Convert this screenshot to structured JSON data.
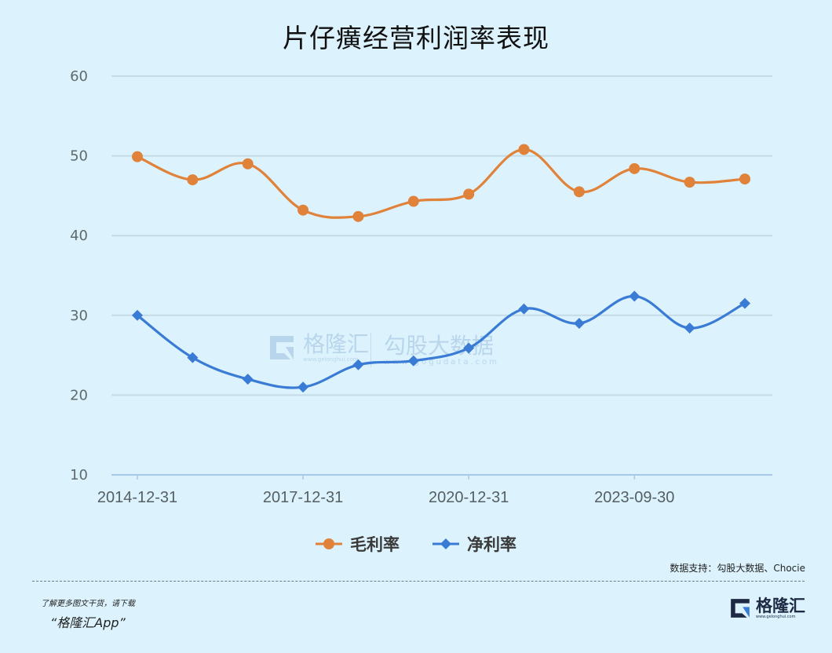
{
  "title": "片仔癀经营利润率表现",
  "legend": {
    "gross": "毛利率",
    "net": "净利率"
  },
  "source": "数据支持：勾股大数据、Chocie",
  "footer": {
    "promo_line1": "了解更多图文干货，请下载",
    "promo_line2": "“格隆汇App”",
    "logo_name": "格隆汇",
    "logo_url": "www.gelonghui.com"
  },
  "watermark": {
    "brand1": "格隆汇",
    "brand1_url": "www.gelonghui.com",
    "brand2": "勾股大数据",
    "brand2_url": "www.gogudata.com"
  },
  "colors": {
    "background": "#dcf3fd",
    "gross": "#e0823a",
    "net": "#3a7bd5",
    "grid": "#c5dbe6",
    "axis": "#a9c7e8"
  },
  "chart_data": {
    "type": "line",
    "title": "片仔癀经营利润率表现",
    "xlabel": "",
    "ylabel": "",
    "ylim": [
      10,
      60
    ],
    "yticks": [
      10,
      20,
      30,
      40,
      50,
      60
    ],
    "x_tick_labels": [
      "2014-12-31",
      "",
      "",
      "2017-12-31",
      "",
      "",
      "2020-12-31",
      "",
      "",
      "2023-09-30",
      "",
      ""
    ],
    "legend_position": "bottom",
    "grid": true,
    "series": [
      {
        "name": "毛利率",
        "marker": "circle",
        "values": [
          49.9,
          47.0,
          49.0,
          43.2,
          42.4,
          44.3,
          45.2,
          50.8,
          45.5,
          48.4,
          46.7,
          47.1
        ]
      },
      {
        "name": "净利率",
        "marker": "diamond",
        "values": [
          30.0,
          24.7,
          22.0,
          21.0,
          23.8,
          24.3,
          25.9,
          30.8,
          29.0,
          32.4,
          28.4,
          31.5
        ]
      }
    ]
  }
}
